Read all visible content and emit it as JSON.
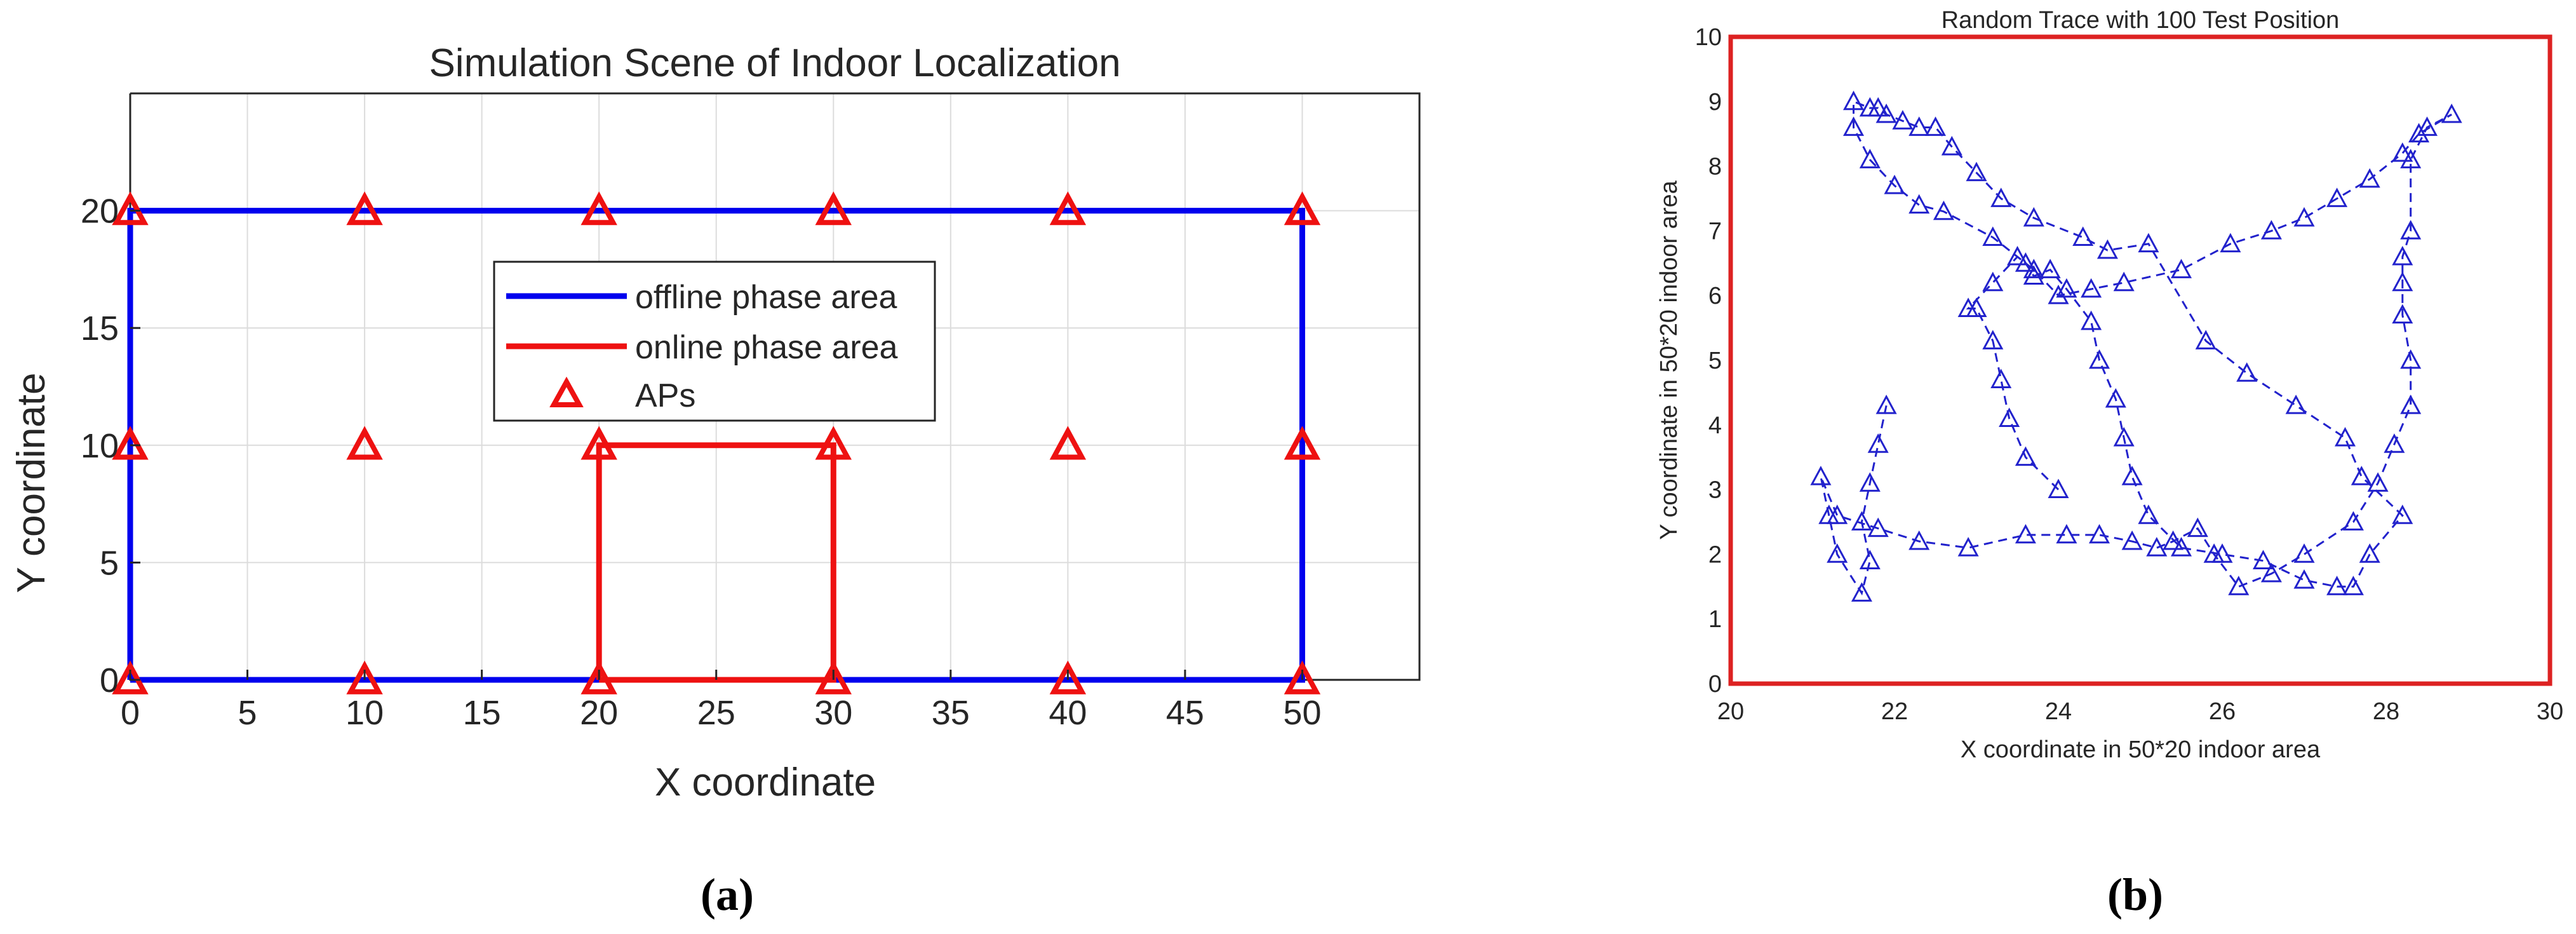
{
  "chart_data": [
    {
      "type": "line",
      "title": "Simulation Scene of Indoor Localization",
      "xlabel": "X coordinate",
      "ylabel": "Y coordinate",
      "xlim": [
        0,
        55
      ],
      "ylim": [
        0,
        25
      ],
      "xticks": [
        "0",
        "5",
        "10",
        "15",
        "20",
        "25",
        "30",
        "35",
        "40",
        "45",
        "50"
      ],
      "yticks": [
        "0",
        "5",
        "10",
        "15",
        "20"
      ],
      "grid": true,
      "legend_position": "center",
      "colors": {
        "offline": "#0000ee",
        "online": "#ee1111",
        "aps": "#ee1111"
      },
      "series": [
        {
          "name": "offline phase area",
          "x": [
            0,
            50,
            50,
            0,
            0
          ],
          "y": [
            0,
            0,
            20,
            20,
            0
          ]
        },
        {
          "name": "online phase area",
          "x": [
            20,
            30,
            30,
            20,
            20
          ],
          "y": [
            0,
            0,
            10,
            10,
            0
          ]
        },
        {
          "name": "APs",
          "x": [
            0,
            10,
            20,
            30,
            40,
            50,
            0,
            10,
            20,
            30,
            40,
            50,
            0,
            10,
            20,
            30,
            40,
            50
          ],
          "y": [
            0,
            0,
            0,
            0,
            0,
            0,
            10,
            10,
            10,
            10,
            10,
            10,
            20,
            20,
            20,
            20,
            20,
            20
          ]
        }
      ],
      "panel_label": "(a)"
    },
    {
      "type": "line",
      "title": "Random Trace with 100 Test Position",
      "xlabel": "X coordinate in 50*20 indoor area",
      "ylabel": "Y coordinate in 50*20 indoor area",
      "xlim": [
        20,
        30
      ],
      "ylim": [
        0,
        10
      ],
      "xticks": [
        "20",
        "22",
        "24",
        "26",
        "28",
        "30"
      ],
      "yticks": [
        "0",
        "1",
        "2",
        "3",
        "4",
        "5",
        "6",
        "7",
        "8",
        "9",
        "10"
      ],
      "grid": false,
      "colors": {
        "trace": "#2222cc",
        "frame": "#dd2222"
      },
      "series": [
        {
          "x": [
            24.0,
            23.6,
            23.4,
            23.3,
            23.2,
            23.0,
            22.9,
            23.2,
            23.5,
            23.6,
            23.7,
            23.9,
            24.1,
            24.4,
            24.5,
            24.7,
            24.8,
            24.9,
            25.1,
            25.5,
            26.0,
            26.5,
            27.0,
            27.4,
            27.6,
            27.8,
            28.2,
            27.7,
            27.5,
            26.9,
            26.3,
            25.8,
            25.1,
            24.6,
            24.3,
            23.7,
            23.3,
            23.0,
            22.7,
            22.5,
            22.3,
            22.1,
            21.9,
            21.8,
            21.7,
            21.5,
            21.5,
            21.7,
            22.0,
            22.3,
            22.6,
            23.2,
            23.7,
            24.0,
            24.4,
            24.8,
            25.5,
            26.1,
            26.6,
            27.0,
            27.4,
            27.8,
            28.2,
            28.4,
            28.8,
            28.5,
            28.3,
            28.3,
            28.2,
            28.2,
            28.2,
            28.3,
            28.3,
            28.1,
            27.9,
            27.6,
            27.0,
            26.6,
            26.2,
            25.9,
            25.7,
            25.4,
            25.2,
            24.9,
            24.5,
            24.1,
            23.6,
            22.9,
            22.3,
            21.8,
            21.3,
            21.1,
            21.2,
            21.3,
            21.6,
            21.7,
            21.6,
            21.7,
            21.8,
            21.9
          ],
          "y": [
            3.0,
            3.5,
            4.1,
            4.7,
            5.3,
            5.8,
            5.8,
            6.2,
            6.6,
            6.5,
            6.3,
            6.4,
            6.1,
            5.6,
            5.0,
            4.4,
            3.8,
            3.2,
            2.6,
            2.1,
            2.0,
            1.9,
            1.6,
            1.5,
            1.5,
            2.0,
            2.6,
            3.2,
            3.8,
            4.3,
            4.8,
            5.3,
            6.8,
            6.7,
            6.9,
            7.2,
            7.5,
            7.9,
            8.3,
            8.6,
            8.6,
            8.7,
            8.8,
            8.9,
            8.9,
            9.0,
            8.6,
            8.1,
            7.7,
            7.4,
            7.3,
            6.9,
            6.4,
            6.0,
            6.1,
            6.2,
            6.4,
            6.8,
            7.0,
            7.2,
            7.5,
            7.8,
            8.2,
            8.5,
            8.8,
            8.6,
            8.1,
            7.0,
            6.6,
            6.2,
            5.7,
            5.0,
            4.3,
            3.7,
            3.1,
            2.5,
            2.0,
            1.7,
            1.5,
            2.0,
            2.4,
            2.2,
            2.1,
            2.2,
            2.3,
            2.3,
            2.3,
            2.1,
            2.2,
            2.4,
            2.6,
            3.2,
            2.6,
            2.0,
            1.4,
            1.9,
            2.5,
            3.1,
            3.7,
            4.3
          ]
        }
      ],
      "panel_label": "(b)"
    }
  ]
}
